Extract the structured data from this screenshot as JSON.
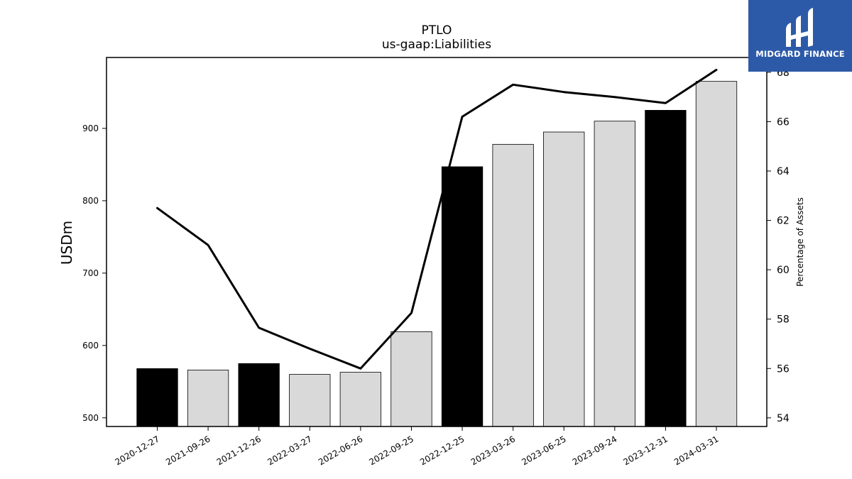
{
  "chart_data": {
    "type": "bar",
    "title": "PTLO",
    "subtitle": "us-gaap:Liabilities",
    "ylabel": "USDm",
    "y2label": "Percentage of Assets",
    "categories": [
      "2020-12-27",
      "2021-09-26",
      "2021-12-26",
      "2022-03-27",
      "2022-06-26",
      "2022-09-25",
      "2022-12-25",
      "2023-03-26",
      "2023-06-25",
      "2023-09-24",
      "2023-12-31",
      "2024-03-31"
    ],
    "values": [
      568,
      566,
      575,
      560,
      563,
      619,
      847,
      878,
      895,
      910,
      925,
      965
    ],
    "highlight": [
      true,
      false,
      true,
      false,
      false,
      false,
      true,
      false,
      false,
      false,
      true,
      false
    ],
    "bar_colors": {
      "highlight": "#000000",
      "normal": "#d9d9d9"
    },
    "line": {
      "name": "Percentage of Assets",
      "values": [
        62.5,
        61.0,
        57.65,
        56.8,
        56.0,
        58.25,
        66.2,
        67.5,
        67.2,
        67.0,
        66.75,
        68.1
      ]
    },
    "ylim": [
      488,
      998
    ],
    "y2lim": [
      53.65,
      68.6
    ],
    "yticks": [
      500,
      600,
      700,
      800,
      900
    ],
    "y2ticks": [
      54,
      56,
      58,
      60,
      62,
      64,
      66,
      68
    ],
    "grid": false,
    "legend": "none"
  },
  "logo": {
    "text": "MIDGARD FINANCE",
    "icon": "midgard-finance-logo-icon"
  }
}
